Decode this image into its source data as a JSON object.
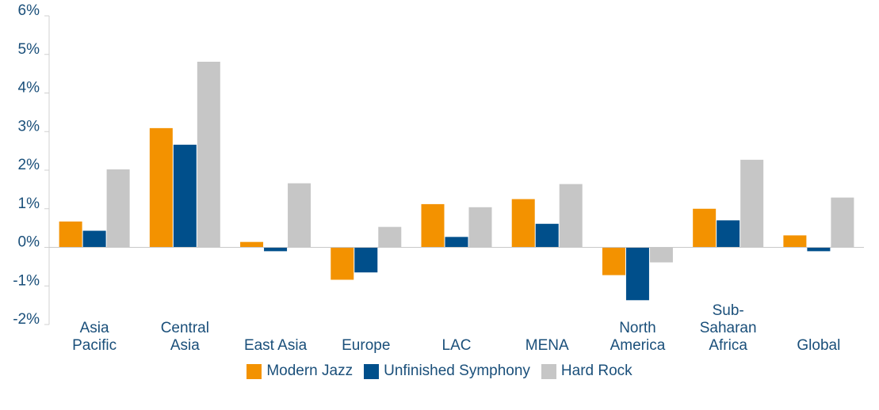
{
  "chart_data": {
    "type": "bar",
    "categories": [
      "Asia Pacific",
      "Central Asia",
      "East Asia",
      "Europe",
      "LAC",
      "MENA",
      "North America",
      "Sub-Saharan Africa",
      "Global"
    ],
    "series": [
      {
        "name": "Modern Jazz",
        "color": "#f39200",
        "values": [
          0.67,
          3.09,
          0.14,
          -0.84,
          1.12,
          1.25,
          -0.72,
          1.0,
          0.31
        ]
      },
      {
        "name": "Unfinished Symphony",
        "color": "#004f8b",
        "values": [
          0.43,
          2.66,
          -0.1,
          -0.65,
          0.27,
          0.61,
          -1.37,
          0.7,
          -0.1
        ]
      },
      {
        "name": "Hard Rock",
        "color": "#c6c6c6",
        "values": [
          2.02,
          4.81,
          1.66,
          0.53,
          1.04,
          1.64,
          -0.39,
          2.27,
          1.29
        ]
      }
    ],
    "ylim": [
      -2,
      6
    ],
    "yticks": [
      {
        "value": -2,
        "label": "-2%"
      },
      {
        "value": -1,
        "label": "-1%"
      },
      {
        "value": 0,
        "label": "0%"
      },
      {
        "value": 1,
        "label": "1%"
      },
      {
        "value": 2,
        "label": "2%"
      },
      {
        "value": 3,
        "label": "3%"
      },
      {
        "value": 4,
        "label": "4%"
      },
      {
        "value": 5,
        "label": "5%"
      },
      {
        "value": 6,
        "label": "6%"
      }
    ],
    "legend": "bottom"
  }
}
